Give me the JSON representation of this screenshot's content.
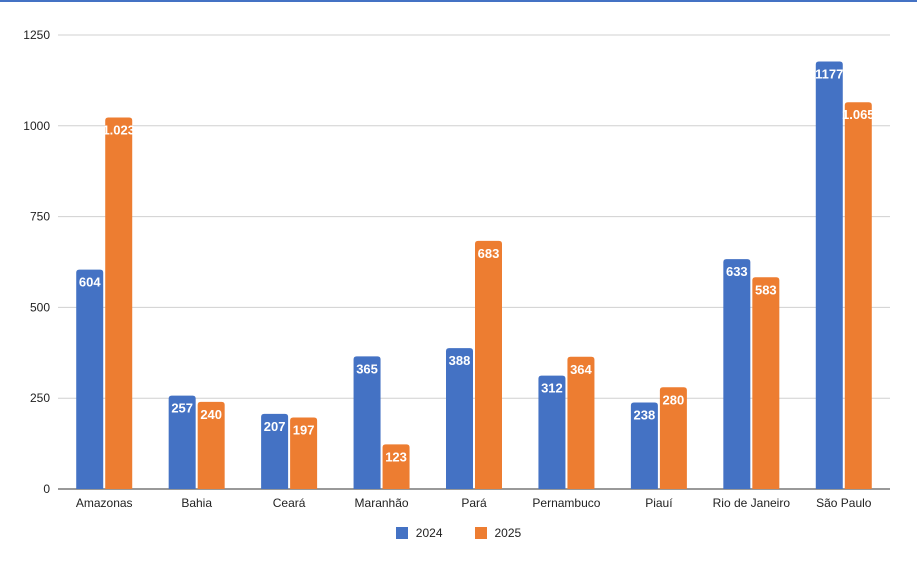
{
  "chart_data": {
    "type": "bar",
    "title": "",
    "xlabel": "",
    "ylabel": "",
    "ylim": [
      0,
      1250
    ],
    "yticks": [
      0,
      250,
      500,
      750,
      1000,
      1250
    ],
    "grid": true,
    "legend_position": "bottom",
    "categories": [
      "Amazonas",
      "Bahia",
      "Ceará",
      "Maranhão",
      "Pará",
      "Pernambuco",
      "Piauí",
      "Rio de Janeiro",
      "São Paulo"
    ],
    "series": [
      {
        "name": "2024",
        "color": "#4472c4",
        "values": [
          604,
          257,
          207,
          365,
          388,
          312,
          238,
          633,
          1177
        ],
        "labels": [
          "604",
          "257",
          "207",
          "365",
          "388",
          "312",
          "238",
          "633",
          "1177"
        ]
      },
      {
        "name": "2025",
        "color": "#ed7d31",
        "values": [
          1023,
          240,
          197,
          123,
          683,
          364,
          280,
          583,
          1065
        ],
        "labels": [
          "1.023",
          "240",
          "197",
          "123",
          "683",
          "364",
          "280",
          "583",
          "1.065"
        ]
      }
    ]
  }
}
